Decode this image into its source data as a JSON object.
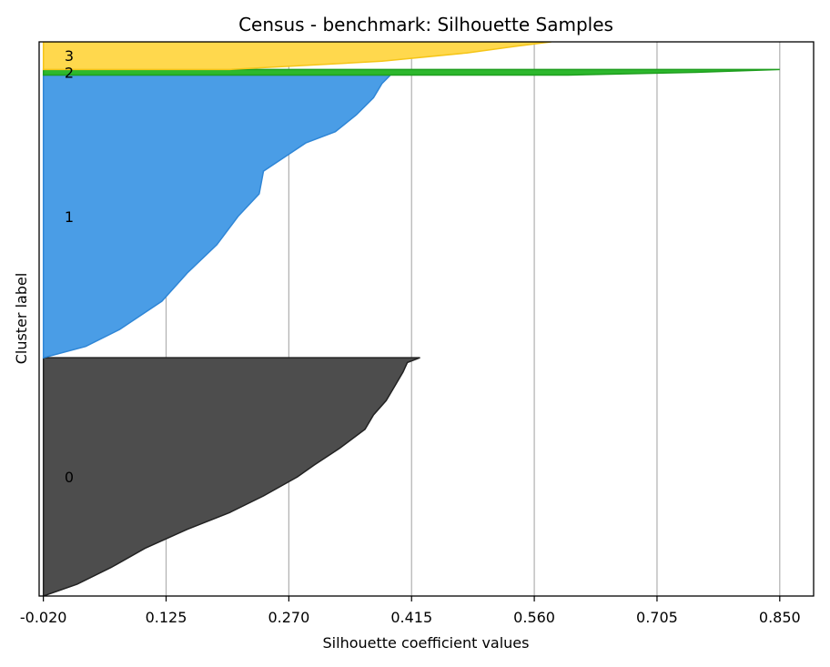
{
  "chart_data": {
    "type": "area",
    "title": "Census - benchmark: Silhouette Samples",
    "xlabel": "Silhouette coefficient values",
    "ylabel": "Cluster label",
    "xlim": [
      -0.025,
      0.89
    ],
    "x_ticks": [
      "-0.020",
      "0.125",
      "0.270",
      "0.415",
      "0.560",
      "0.705",
      "0.850"
    ],
    "x_tick_values": [
      -0.02,
      0.125,
      0.27,
      0.415,
      0.56,
      0.705,
      0.85
    ],
    "grid": "vertical",
    "clusters": [
      {
        "label": "0",
        "color": "#4d4d4d",
        "edge_color": "#222222",
        "samples_pct": 43,
        "profile": [
          [
            0.0,
            -0.02
          ],
          [
            0.05,
            0.02
          ],
          [
            0.12,
            0.06
          ],
          [
            0.2,
            0.1
          ],
          [
            0.28,
            0.15
          ],
          [
            0.35,
            0.2
          ],
          [
            0.42,
            0.24
          ],
          [
            0.5,
            0.28
          ],
          [
            0.55,
            0.3
          ],
          [
            0.62,
            0.33
          ],
          [
            0.7,
            0.36
          ],
          [
            0.76,
            0.37
          ],
          [
            0.82,
            0.385
          ],
          [
            0.88,
            0.395
          ],
          [
            0.94,
            0.405
          ],
          [
            0.98,
            0.41
          ],
          [
            1.0,
            0.425
          ]
        ]
      },
      {
        "label": "1",
        "color": "#4a9de6",
        "edge_color": "#2f86d6",
        "samples_pct": 51,
        "profile": [
          [
            0.0,
            -0.02
          ],
          [
            0.04,
            0.03
          ],
          [
            0.1,
            0.07
          ],
          [
            0.2,
            0.12
          ],
          [
            0.3,
            0.15
          ],
          [
            0.4,
            0.185
          ],
          [
            0.5,
            0.21
          ],
          [
            0.58,
            0.235
          ],
          [
            0.66,
            0.24
          ],
          [
            0.72,
            0.27
          ],
          [
            0.76,
            0.29
          ],
          [
            0.8,
            0.325
          ],
          [
            0.86,
            0.35
          ],
          [
            0.92,
            0.37
          ],
          [
            0.97,
            0.38
          ],
          [
            1.0,
            0.39
          ]
        ]
      },
      {
        "label": "2",
        "color": "#2db82d",
        "edge_color": "#1f9e1f",
        "samples_pct": 1,
        "profile": [
          [
            0.0,
            0.6
          ],
          [
            0.5,
            0.75
          ],
          [
            1.0,
            0.85
          ]
        ]
      },
      {
        "label": "3",
        "color": "#ffd84d",
        "edge_color": "#f5c518",
        "samples_pct": 5,
        "profile": [
          [
            0.0,
            0.2
          ],
          [
            0.3,
            0.38
          ],
          [
            0.6,
            0.48
          ],
          [
            0.85,
            0.54
          ],
          [
            1.0,
            0.58
          ]
        ]
      }
    ]
  }
}
